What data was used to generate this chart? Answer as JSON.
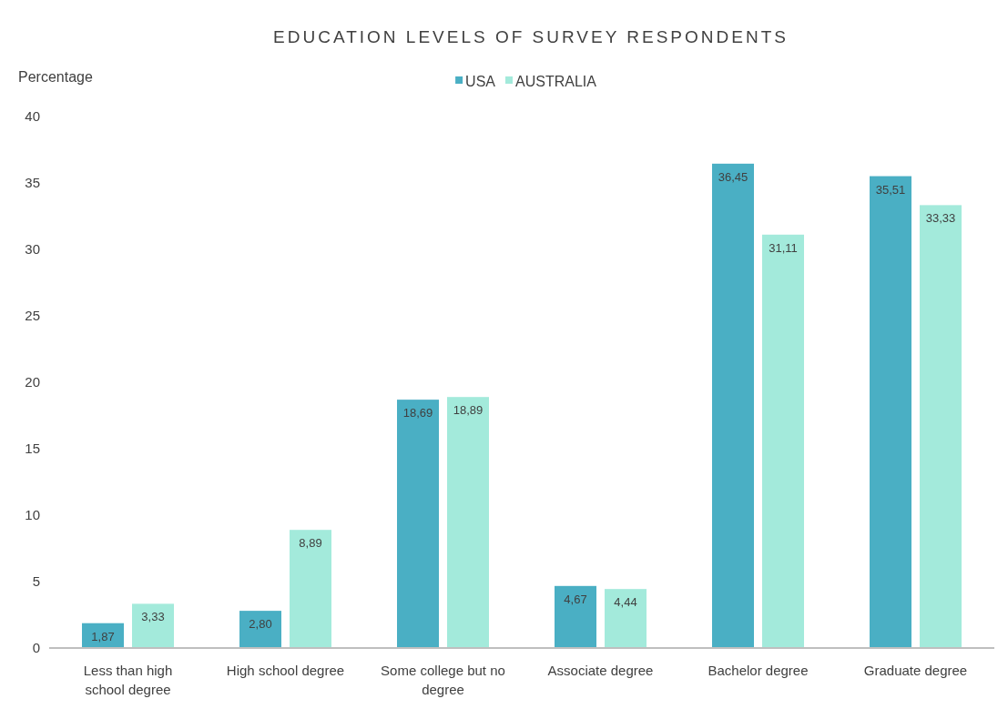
{
  "chart_data": {
    "type": "bar",
    "title": "EDUCATION LEVELS OF SURVEY RESPONDENTS",
    "ylabel": "Percentage",
    "categories": [
      "Less than high school degree",
      "High school degree",
      "Some college but no degree",
      "Associate degree",
      "Bachelor degree",
      "Graduate degree"
    ],
    "series": [
      {
        "name": "USA",
        "color": "#4aafc4",
        "values": [
          1.87,
          2.8,
          18.69,
          4.67,
          36.45,
          35.51
        ],
        "value_labels": [
          "1,87",
          "2,80",
          "18,69",
          "4,67",
          "36,45",
          "35,51"
        ]
      },
      {
        "name": "AUSTRALIA",
        "color": "#a3eadb",
        "values": [
          3.33,
          8.89,
          18.89,
          4.44,
          31.11,
          33.33
        ],
        "value_labels": [
          "3,33",
          "8,89",
          "18,89",
          "4,44",
          "31,11",
          "33,33"
        ]
      }
    ],
    "ylim": [
      0,
      40
    ],
    "yticks": [
      0,
      5,
      10,
      15,
      20,
      25,
      30,
      35,
      40
    ],
    "legend": "top"
  }
}
